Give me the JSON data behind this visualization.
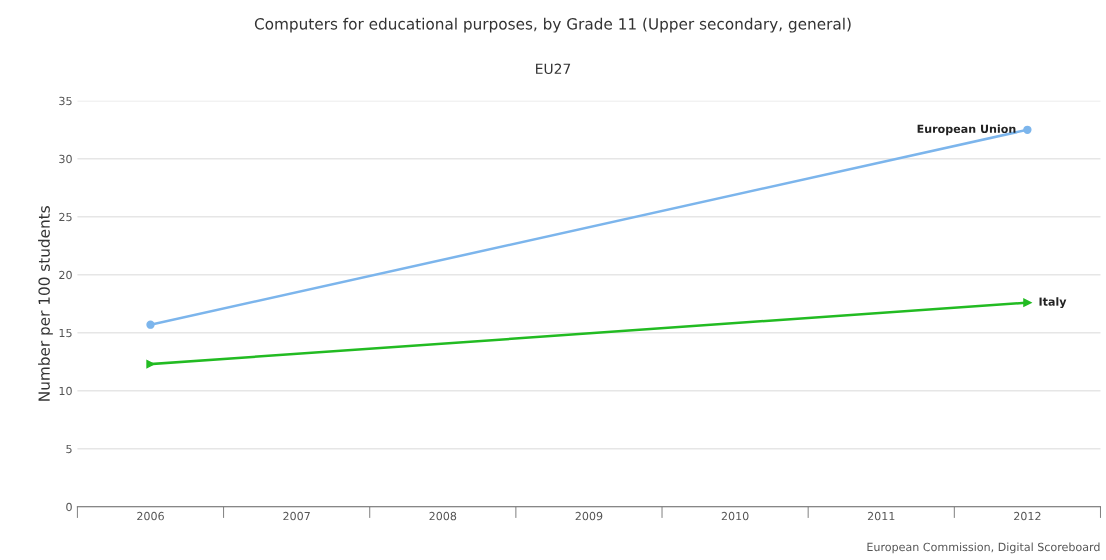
{
  "chart_data": {
    "type": "line",
    "title": "Computers for educational purposes, by Grade 11 (Upper secondary, general)",
    "subtitle": "EU27",
    "ylabel": "Number per 100 students",
    "categories": [
      "2006",
      "2007",
      "2008",
      "2009",
      "2010",
      "2011",
      "2012"
    ],
    "series": [
      {
        "name": "European Union",
        "color": "#7cb5ec",
        "marker": "circle",
        "values": [
          15.7,
          null,
          null,
          null,
          null,
          null,
          32.5
        ]
      },
      {
        "name": "Italy",
        "color": "#22bb22",
        "marker": "triangle",
        "values": [
          12.3,
          null,
          null,
          null,
          null,
          null,
          17.6
        ]
      }
    ],
    "ylim": [
      0,
      35
    ],
    "yticks": [
      0,
      5,
      10,
      15,
      20,
      25,
      30,
      35
    ],
    "grid": "y",
    "legend": false,
    "line_style": "solid",
    "annotations": [
      "European Commission, Digital Scoreboard"
    ]
  }
}
